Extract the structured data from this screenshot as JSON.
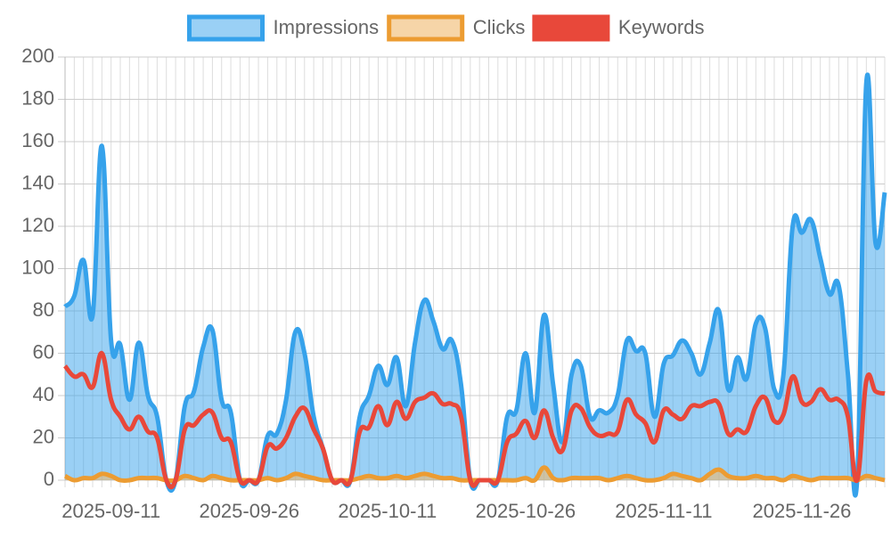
{
  "chart_data": {
    "type": "line",
    "categories": [
      null,
      null,
      null,
      null,
      null,
      "2025-09-11",
      null,
      null,
      null,
      null,
      null,
      null,
      null,
      null,
      null,
      null,
      null,
      null,
      null,
      null,
      "2025-09-26",
      null,
      null,
      null,
      null,
      null,
      null,
      null,
      null,
      null,
      null,
      null,
      null,
      null,
      null,
      "2025-10-11",
      null,
      null,
      null,
      null,
      null,
      null,
      null,
      null,
      null,
      null,
      null,
      null,
      null,
      null,
      "2025-10-26",
      null,
      null,
      null,
      null,
      null,
      null,
      null,
      null,
      null,
      null,
      null,
      null,
      null,
      null,
      "2025-11-11",
      null,
      null,
      null,
      null,
      null,
      null,
      null,
      null,
      null,
      null,
      null,
      null,
      null,
      null,
      "2025-11-26",
      null,
      null,
      null,
      null,
      null,
      null,
      null,
      null,
      null
    ],
    "series": [
      {
        "name": "Impressions",
        "color": "#36a2eb",
        "fill_color": "rgba(54,162,235,0.5)",
        "values": [
          82,
          87,
          104,
          78,
          158,
          66,
          64,
          38,
          65,
          40,
          30,
          0,
          0,
          35,
          42,
          63,
          71,
          38,
          32,
          0,
          0,
          0,
          21,
          22,
          38,
          70,
          60,
          30,
          15,
          0,
          0,
          0,
          30,
          40,
          54,
          45,
          58,
          35,
          65,
          85,
          75,
          62,
          66,
          45,
          0,
          0,
          0,
          0,
          30,
          33,
          60,
          32,
          78,
          45,
          18,
          50,
          54,
          30,
          33,
          32,
          40,
          66,
          61,
          60,
          30,
          55,
          59,
          66,
          60,
          50,
          65,
          80,
          43,
          58,
          48,
          74,
          72,
          43,
          50,
          120,
          117,
          123,
          105,
          88,
          92,
          50,
          0,
          188,
          112,
          136
        ]
      },
      {
        "name": "Clicks",
        "color": "#ec9c32",
        "fill_color": "rgba(240,185,110,0.6)",
        "values": [
          2,
          0,
          1,
          1,
          3,
          2,
          0,
          0,
          1,
          1,
          1,
          0,
          0,
          2,
          1,
          0,
          2,
          1,
          0,
          0,
          0,
          0,
          1,
          0,
          1,
          3,
          2,
          1,
          0,
          0,
          0,
          0,
          1,
          2,
          1,
          1,
          2,
          1,
          2,
          3,
          2,
          1,
          1,
          0,
          0,
          0,
          0,
          0,
          0,
          0,
          1,
          0,
          6,
          1,
          0,
          1,
          1,
          1,
          1,
          0,
          1,
          2,
          1,
          0,
          0,
          1,
          3,
          2,
          1,
          0,
          3,
          5,
          2,
          1,
          1,
          2,
          1,
          1,
          0,
          2,
          1,
          0,
          1,
          1,
          1,
          1,
          0,
          2,
          1,
          0
        ]
      },
      {
        "name": "Keywords",
        "color": "#e8483a",
        "fill_color": null,
        "values": [
          54,
          49,
          50,
          44,
          60,
          38,
          30,
          24,
          30,
          23,
          20,
          0,
          0,
          24,
          26,
          31,
          32,
          20,
          18,
          0,
          0,
          0,
          16,
          15,
          20,
          30,
          34,
          24,
          15,
          0,
          0,
          0,
          23,
          25,
          35,
          26,
          37,
          29,
          37,
          39,
          41,
          36,
          36,
          30,
          0,
          0,
          0,
          0,
          18,
          22,
          28,
          20,
          33,
          20,
          14,
          33,
          34,
          25,
          21,
          22,
          23,
          38,
          31,
          27,
          18,
          33,
          31,
          29,
          35,
          35,
          37,
          36,
          22,
          24,
          23,
          35,
          39,
          28,
          31,
          49,
          37,
          37,
          43,
          38,
          38,
          30,
          0,
          47,
          42,
          41
        ]
      }
    ],
    "ylim": [
      0,
      200
    ],
    "yticks": [
      0,
      20,
      40,
      60,
      80,
      100,
      120,
      140,
      160,
      180,
      200
    ],
    "grid": true,
    "legend": "top"
  }
}
